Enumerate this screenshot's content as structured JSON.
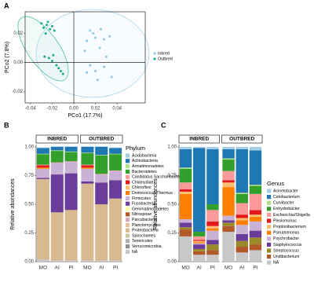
{
  "chart_data": [
    {
      "type": "scatter",
      "panel": "A",
      "x_label": "PCo1 (17.7%)",
      "y_label": "PCo2 (7.8%)",
      "xlim": [
        -0.045,
        0.066
      ],
      "ylim": [
        -0.028,
        0.035
      ],
      "xticks": [
        -0.04,
        -0.02,
        {
          "value": 0,
          "label": "0.00"
        },
        0.02,
        0.04
      ],
      "yticks": [
        -0.02,
        {
          "value": 0,
          "label": "0.00"
        },
        0.02
      ],
      "legend": "right",
      "series": [
        {
          "name": "Inbred",
          "color": "#8ec9e8",
          "x": [
            0.015,
            0.018,
            0.025,
            0.012,
            0.028,
            0.033,
            0.02,
            0.01,
            0.015,
            0.02,
            0.028,
            0.035,
            0.022,
            0.012,
            0.03,
            0.024
          ],
          "y": [
            0.022,
            0.02,
            0.023,
            0.015,
            0.016,
            0.018,
            0.017,
            0.008,
            -0.002,
            -0.006,
            -0.003,
            -0.01,
            -0.012,
            -0.007,
            0.004,
            0.01
          ]
        },
        {
          "name": "Outbred",
          "color": "#1fa88a",
          "x": [
            -0.03,
            -0.028,
            -0.025,
            -0.022,
            -0.026,
            -0.02,
            -0.024,
            -0.018,
            -0.027,
            -0.023,
            -0.02,
            -0.016,
            -0.012,
            -0.014,
            -0.019,
            -0.01
          ],
          "y": [
            0.027,
            0.024,
            0.026,
            0.023,
            0.02,
            0.025,
            0.028,
            0.022,
            0.004,
            0.003,
            0.001,
            -0.002,
            -0.006,
            -0.004,
            0.005,
            -0.008
          ]
        }
      ]
    },
    {
      "type": "stacked_bar",
      "panel": "B",
      "y_label": "Relative abundances",
      "legend_title": "Phylum",
      "ylim": [
        0,
        1
      ],
      "yticks": [
        {
          "value": 0,
          "label": "0.00"
        },
        0.25,
        {
          "value": 0.5,
          "label": "0.50"
        },
        0.75,
        {
          "value": 1,
          "label": "1.00"
        }
      ],
      "facets": [
        {
          "label": "INBRED",
          "categories": [
            "MO",
            "AI",
            "PI"
          ]
        },
        {
          "label": "OUTBRED",
          "categories": [
            "MO",
            "AI",
            "PI"
          ]
        }
      ],
      "series": [
        {
          "name": "Acidobacteria",
          "color": "#a6cee3",
          "values": [
            0.005,
            0.005,
            0.005,
            0.005,
            0.005,
            0.005
          ]
        },
        {
          "name": "Actinobacteria",
          "color": "#1f78b4",
          "values": [
            0.05,
            0.03,
            0.04,
            0.05,
            0.07,
            0.05
          ]
        },
        {
          "name": "Armatimonadetes",
          "color": "#b2df8a",
          "values": [
            0.005,
            0.005,
            0.005,
            0.005,
            0.005,
            0.005
          ]
        },
        {
          "name": "Bacteroidetes",
          "color": "#33a02c",
          "values": [
            0.09,
            0.1,
            0.08,
            0.1,
            0.16,
            0.14
          ]
        },
        {
          "name": "Candidatus Saccharibacteria",
          "color": "#fb9a99",
          "values": [
            0.005,
            0.005,
            0.005,
            0.005,
            0.005,
            0.005
          ]
        },
        {
          "name": "Chlamydiae",
          "color": "#e31a1c",
          "values": [
            0.02,
            0,
            0,
            0.02,
            0,
            0
          ]
        },
        {
          "name": "Chloroflexi",
          "color": "#fdbf6f",
          "values": [
            0,
            0,
            0,
            0,
            0,
            0
          ]
        },
        {
          "name": "Deinococcus-Thermus",
          "color": "#ff7f00",
          "values": [
            0.01,
            0,
            0,
            0.01,
            0,
            0
          ]
        },
        {
          "name": "Firmicutes",
          "color": "#cab2d6",
          "values": [
            0.08,
            0.1,
            0.1,
            0.11,
            0.07,
            0.08
          ]
        },
        {
          "name": "Fusobacteria",
          "color": "#6a3d9a",
          "values": [
            0.01,
            0.33,
            0.32,
            0.02,
            0.19,
            0.16
          ]
        },
        {
          "name": "Gemmatimonadetes",
          "color": "#ffff99",
          "values": [
            0,
            0,
            0,
            0,
            0,
            0
          ]
        },
        {
          "name": "Nitrospirae",
          "color": "#b15928",
          "values": [
            0,
            0,
            0,
            0,
            0,
            0
          ]
        },
        {
          "name": "Parcubacteria",
          "color": "#d9a8c0",
          "values": [
            0,
            0,
            0,
            0,
            0,
            0
          ]
        },
        {
          "name": "Planctomycetes",
          "color": "#e8c0a0",
          "values": [
            0,
            0,
            0,
            0,
            0,
            0
          ]
        },
        {
          "name": "Proteobacteria",
          "color": "#d9b98f",
          "values": [
            0.7,
            0.42,
            0.44,
            0.67,
            0.49,
            0.54
          ]
        },
        {
          "name": "Spirochaetes",
          "color": "#c8c8a0",
          "values": [
            0,
            0,
            0,
            0,
            0,
            0
          ]
        },
        {
          "name": "Tenericutes",
          "color": "#b0b0b0",
          "values": [
            0,
            0,
            0,
            0,
            0,
            0
          ]
        },
        {
          "name": "Verrucomicrobia",
          "color": "#909090",
          "values": [
            0,
            0,
            0,
            0,
            0,
            0
          ]
        },
        {
          "name": "NA",
          "color": "#c8c8c8",
          "values": [
            0.02,
            0.01,
            0.01,
            0.01,
            0.01,
            0.01
          ]
        }
      ]
    },
    {
      "type": "stacked_bar",
      "panel": "C",
      "y_label": "Relative abundances",
      "legend_title": "Genus",
      "ylim": [
        0,
        1
      ],
      "yticks": [
        {
          "value": 0,
          "label": "0.00"
        },
        0.25,
        {
          "value": 0.5,
          "label": "0.50"
        },
        0.75,
        {
          "value": 1,
          "label": "1.00"
        }
      ],
      "facets": [
        {
          "label": "INBRED",
          "categories": [
            "MO",
            "AI",
            "PI"
          ]
        },
        {
          "label": "OUTBRED",
          "categories": [
            "MO",
            "AI",
            "PI"
          ]
        }
      ],
      "series": [
        {
          "name": "Acinetobacter",
          "color": "#a6cee3",
          "values": [
            0.02,
            0.01,
            0.02,
            0.02,
            0.02,
            0.03
          ]
        },
        {
          "name": "Cetobacterium",
          "color": "#1f78b4",
          "values": [
            0.16,
            0.73,
            0.48,
            0.08,
            0.38,
            0.3
          ]
        },
        {
          "name": "Curvibacter",
          "color": "#b2df8a",
          "values": [
            0.01,
            0,
            0,
            0.01,
            0.01,
            0.01
          ]
        },
        {
          "name": "Enhydrobacter",
          "color": "#33a02c",
          "values": [
            0.12,
            0.04,
            0.05,
            0.1,
            0.08,
            0.07
          ]
        },
        {
          "name": "Escherichia/Shigella",
          "color": "#fb9a99",
          "values": [
            0.06,
            0.03,
            0.1,
            0.08,
            0.1,
            0.14
          ]
        },
        {
          "name": "Plesiomonas",
          "color": "#e31a1c",
          "values": [
            0.02,
            0.01,
            0.04,
            0.02,
            0.03,
            0.04
          ]
        },
        {
          "name": "Propionibacterium",
          "color": "#fdbf6f",
          "values": [
            0.02,
            0.01,
            0.02,
            0.04,
            0.02,
            0.02
          ]
        },
        {
          "name": "Pseudomonas",
          "color": "#ff7f00",
          "values": [
            0.22,
            0.01,
            0.02,
            0.25,
            0.04,
            0.04
          ]
        },
        {
          "name": "Psychrobacter",
          "color": "#cab2d6",
          "values": [
            0.03,
            0.01,
            0.08,
            0.04,
            0.08,
            0.08
          ]
        },
        {
          "name": "Staphylococcus",
          "color": "#6a3d9a",
          "values": [
            0.04,
            0.04,
            0.04,
            0.02,
            0.06,
            0.06
          ]
        },
        {
          "name": "Streptococcus",
          "color": "#9a8a2a",
          "values": [
            0.02,
            0.02,
            0.05,
            0.03,
            0.05,
            0.06
          ]
        },
        {
          "name": "Undibacterium",
          "color": "#b15928",
          "values": [
            0.06,
            0.03,
            0.04,
            0.05,
            0.05,
            0.05
          ]
        },
        {
          "name": "NA",
          "color": "#c8c8c8",
          "values": [
            0.22,
            0.06,
            0.06,
            0.26,
            0.08,
            0.1
          ]
        }
      ]
    }
  ]
}
